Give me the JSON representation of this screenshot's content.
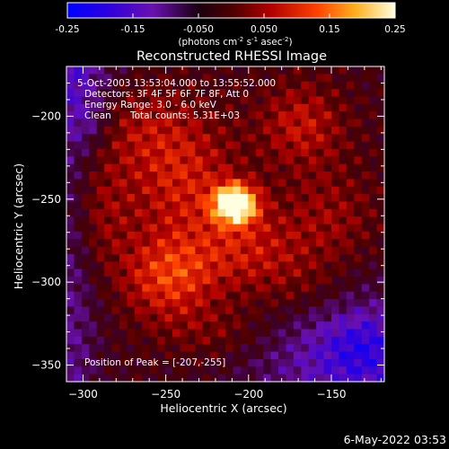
{
  "colorbar": {
    "ticks": [
      "-0.25",
      "-0.15",
      "-0.050",
      "0.050",
      "0.15",
      "0.25"
    ],
    "units_main": "(photons cm",
    "units_sup1": "-2",
    "units_mid": " s",
    "units_sup2": "-1",
    "units_end": " asec",
    "units_sup3": "-2",
    "units_close": ")"
  },
  "info": {
    "time_range": "5-Oct-2003 13:53:04.000 to 13:55:52.000",
    "detectors": "Detectors: 3F 4F 5F 6F 7F 8F, Att 0",
    "energy": "Energy Range: 3.0 - 6.0 keV",
    "method": "Clean",
    "counts": "Total counts: 5.31E+03",
    "peak": "Position of Peak = [-207,-255]"
  },
  "footer": {
    "date": "6-May-2022 03:53"
  },
  "chart_data": {
    "type": "heatmap",
    "title": "Reconstructed RHESSI Image",
    "xlabel": "Heliocentric X (arcsec)",
    "ylabel": "Heliocentric Y (arcsec)",
    "xlim": [
      -310,
      -118
    ],
    "ylim": [
      -360,
      -170
    ],
    "x_ticks": [
      -300,
      -250,
      -200,
      -150
    ],
    "y_ticks": [
      -200,
      -250,
      -300,
      -350
    ],
    "x_tick_labels": [
      "−300",
      "−250",
      "−200",
      "−150"
    ],
    "y_tick_labels": [
      "−200",
      "−250",
      "−300",
      "−350"
    ],
    "color_range": [
      -0.25,
      0.25
    ],
    "colormap": [
      "#0000ff",
      "#4a00c8",
      "#7a1fa0",
      "#000000",
      "#6a0000",
      "#c01000",
      "#ff6000",
      "#ffd040",
      "#ffffff"
    ],
    "background_level": -0.05,
    "peak": [
      -207,
      -255
    ],
    "sources": [
      {
        "x": -208,
        "y": -253,
        "sx": 9,
        "sy": 8,
        "amp": 0.32
      },
      {
        "x": -248,
        "y": -297,
        "sx": 20,
        "sy": 18,
        "amp": 0.13
      },
      {
        "x": -240,
        "y": -238,
        "sx": 24,
        "sy": 26,
        "amp": 0.1
      },
      {
        "x": -200,
        "y": -280,
        "sx": 24,
        "sy": 18,
        "amp": 0.09
      },
      {
        "x": -168,
        "y": -205,
        "sx": 18,
        "sy": 18,
        "amp": 0.09
      },
      {
        "x": -270,
        "y": -205,
        "sx": 26,
        "sy": 18,
        "amp": 0.06
      },
      {
        "x": -292,
        "y": -258,
        "sx": 14,
        "sy": 26,
        "amp": 0.07
      },
      {
        "x": -150,
        "y": -262,
        "sx": 20,
        "sy": 22,
        "amp": 0.06
      },
      {
        "x": -168,
        "y": -305,
        "sx": 22,
        "sy": 14,
        "amp": 0.05
      },
      {
        "x": -215,
        "y": -330,
        "sx": 26,
        "sy": 12,
        "amp": 0.05
      },
      {
        "x": -130,
        "y": -340,
        "sx": 16,
        "sy": 14,
        "amp": -0.06
      },
      {
        "x": -295,
        "y": -205,
        "sx": 10,
        "sy": 12,
        "amp": -0.05
      }
    ]
  }
}
